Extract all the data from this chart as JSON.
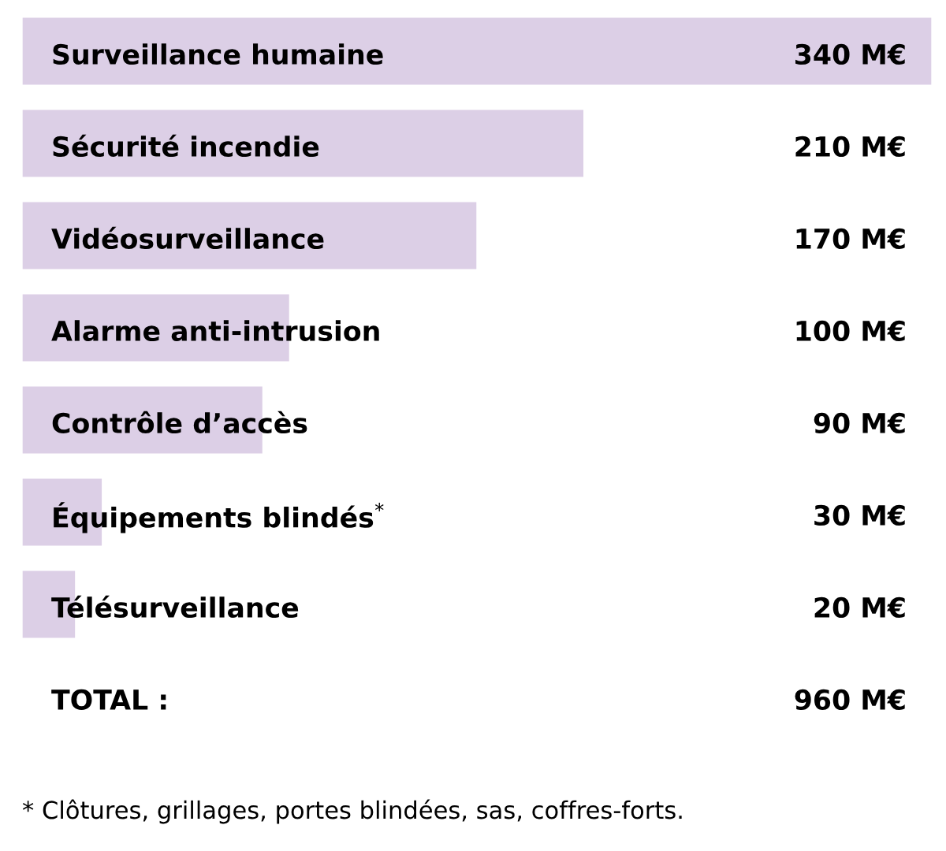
{
  "chart_data": {
    "type": "bar",
    "orientation": "horizontal",
    "categories": [
      "Surveillance humaine",
      "Sécurité incendie",
      "Vidéosurveillance",
      "Alarme anti-intrusion",
      "Contrôle d’accès",
      "Équipements blindés$^{*}$",
      "Télésurveillance"
    ],
    "values": [
      340,
      210,
      170,
      100,
      90,
      30,
      20
    ],
    "color": "#dccfe6",
    "value_labels": [
      "340 M€",
      "210 M€",
      "170 M€",
      "100 M€",
      "90 M€",
      "30 M€",
      "20 M€"
    ],
    "annotations": [
      "TOTAL :",
      "960 M€",
      "* Clôtures, grillages, portes blindées, sas, coffres-forts."
    ]
  }
}
